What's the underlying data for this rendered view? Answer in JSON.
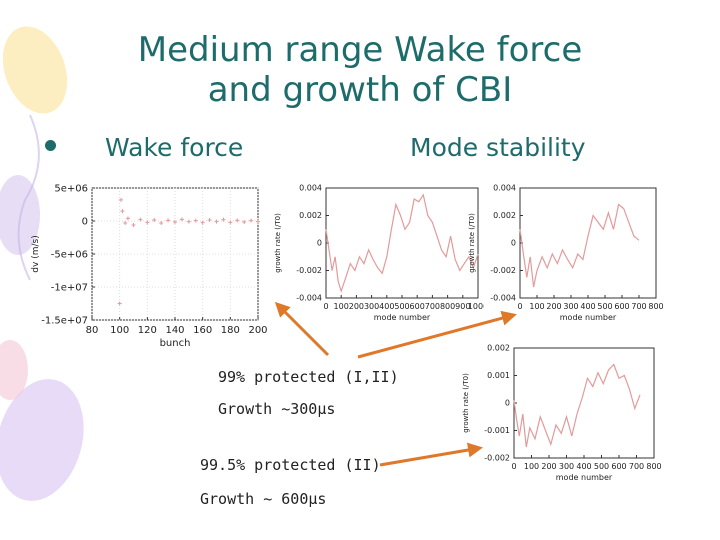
{
  "slide": {
    "title_line1": "Medium range Wake force",
    "title_line2": "and growth of CBI",
    "left_heading": "Wake force",
    "right_heading": "Mode stability",
    "notes": [
      "99% protected (I,II)",
      "Growth ~300µs",
      "99.5% protected (II)",
      "Growth ~ 600µs"
    ],
    "colors": {
      "title": "#1d6b6b",
      "plot_line": "#e39a9a",
      "arrow": "#e0782a"
    }
  },
  "chart_data": [
    {
      "type": "scatter",
      "xlabel": "bunch",
      "ylabel": "dv (m/s)",
      "xlim": [
        80,
        200
      ],
      "ylim": [
        -15000000,
        5000000
      ],
      "xticks": [
        "80",
        "100",
        "120",
        "140",
        "160",
        "180",
        "200"
      ],
      "yticks": [
        "5e+06",
        "0",
        "-5e+06",
        "-1e+07",
        "-1.5e+07"
      ],
      "grid": true,
      "series": [
        {
          "x": [
            100,
            101,
            102,
            104,
            106,
            110,
            115,
            120,
            125,
            130,
            135,
            140,
            145,
            150,
            155,
            160,
            165,
            170,
            175,
            180,
            185,
            190,
            195,
            200
          ],
          "y": [
            -12500000,
            3200000,
            1500000,
            -300000,
            400000,
            -600000,
            200000,
            -200000,
            150000,
            -300000,
            100000,
            -150000,
            250000,
            -100000,
            50000,
            -250000,
            150000,
            -100000,
            200000,
            -200000,
            100000,
            -150000,
            50000,
            -100000
          ]
        }
      ]
    },
    {
      "type": "line",
      "xlabel": "mode number",
      "ylabel": "growth rate (/T0)",
      "xlim": [
        0,
        1000
      ],
      "ylim": [
        -0.004,
        0.004
      ],
      "xticks": [
        "0",
        "100",
        "200",
        "300",
        "400",
        "500",
        "600",
        "700",
        "800",
        "900",
        "1000"
      ],
      "yticks": [
        "0.004",
        "0.002",
        "0",
        "-0.002",
        "-0.004"
      ],
      "series": [
        {
          "x": [
            0,
            20,
            40,
            60,
            80,
            100,
            130,
            160,
            190,
            220,
            250,
            280,
            310,
            340,
            370,
            400,
            430,
            460,
            490,
            520,
            550,
            580,
            610,
            640,
            670,
            700,
            730,
            760,
            790,
            820,
            850,
            880,
            910,
            940,
            970,
            1000
          ],
          "y": [
            0.001,
            -0.0005,
            -0.002,
            -0.001,
            -0.0028,
            -0.0035,
            -0.0025,
            -0.0015,
            -0.002,
            -0.001,
            -0.0015,
            -0.0005,
            -0.0012,
            -0.0018,
            -0.0022,
            -0.001,
            0.001,
            0.0028,
            0.002,
            0.001,
            0.0015,
            0.0032,
            0.003,
            0.0035,
            0.002,
            0.0015,
            0.0005,
            -0.0005,
            -0.001,
            0.0005,
            -0.0012,
            -0.002,
            -0.0015,
            -0.001,
            -0.0018,
            -0.0008
          ]
        }
      ]
    },
    {
      "type": "line",
      "xlabel": "mode number",
      "ylabel": "growth rate (/T0)",
      "xlim": [
        0,
        800
      ],
      "ylim": [
        -0.004,
        0.004
      ],
      "xticks": [
        "0",
        "100",
        "200",
        "300",
        "400",
        "500",
        "600",
        "700",
        "800"
      ],
      "yticks": [
        "0.004",
        "0.002",
        "0",
        "-0.002",
        "-0.004"
      ],
      "series": [
        {
          "x": [
            0,
            20,
            40,
            60,
            80,
            100,
            130,
            160,
            190,
            220,
            250,
            280,
            310,
            340,
            370,
            400,
            430,
            460,
            490,
            520,
            550,
            580,
            610,
            640,
            670,
            700
          ],
          "y": [
            0.001,
            -0.0008,
            -0.0025,
            -0.001,
            -0.0032,
            -0.002,
            -0.001,
            -0.0018,
            -0.0008,
            -0.0015,
            -0.0005,
            -0.0012,
            -0.0018,
            -0.0008,
            -0.0012,
            0.0005,
            0.002,
            0.0015,
            0.001,
            0.0022,
            0.001,
            0.0028,
            0.0025,
            0.0015,
            0.0005,
            0.0002
          ]
        }
      ]
    },
    {
      "type": "line",
      "xlabel": "mode number",
      "ylabel": "growth rate (/T0)",
      "xlim": [
        0,
        800
      ],
      "ylim": [
        -0.002,
        0.002
      ],
      "xticks": [
        "0",
        "100",
        "200",
        "300",
        "400",
        "500",
        "600",
        "700",
        "800"
      ],
      "yticks": [
        "0.002",
        "0.001",
        "0",
        "-0.001",
        "-0.002"
      ],
      "series": [
        {
          "x": [
            0,
            15,
            30,
            50,
            70,
            90,
            120,
            150,
            180,
            210,
            240,
            270,
            300,
            330,
            360,
            390,
            420,
            450,
            480,
            510,
            540,
            570,
            600,
            630,
            660,
            690,
            720
          ],
          "y": [
            0.0001,
            -0.0006,
            -0.0012,
            -0.0004,
            -0.0016,
            -0.0009,
            -0.0013,
            -0.0005,
            -0.001,
            -0.0015,
            -0.0008,
            -0.0011,
            -0.0005,
            -0.0012,
            -0.0004,
            0.0002,
            0.0009,
            0.0006,
            0.0011,
            0.0007,
            0.0012,
            0.0014,
            0.0009,
            0.001,
            0.0005,
            -0.0002,
            0.0003
          ]
        }
      ]
    }
  ]
}
